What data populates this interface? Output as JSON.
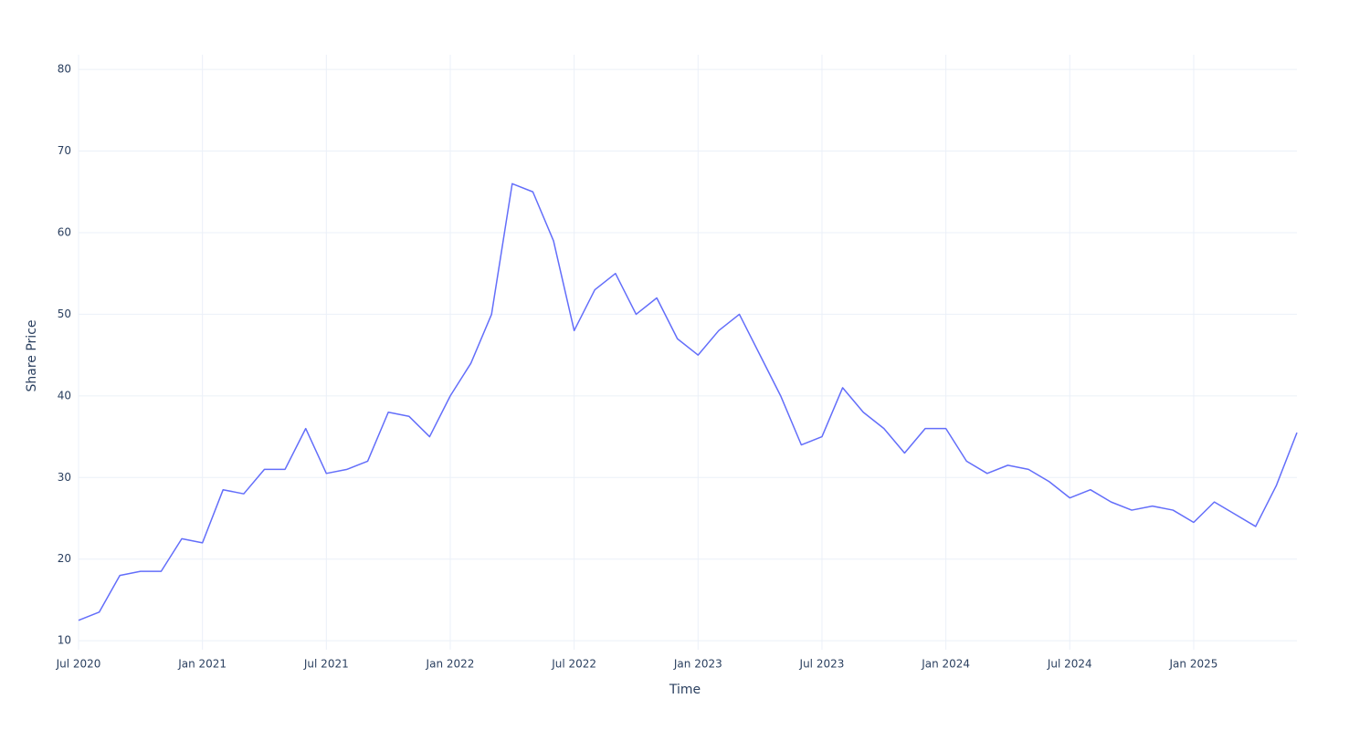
{
  "chart_data": {
    "type": "line",
    "x_label": "Time",
    "y_label": "Share Price",
    "x": [
      "2020-07",
      "2020-08",
      "2020-09",
      "2020-10",
      "2020-11",
      "2020-12",
      "2021-01",
      "2021-02",
      "2021-03",
      "2021-04",
      "2021-05",
      "2021-06",
      "2021-07",
      "2021-08",
      "2021-09",
      "2021-10",
      "2021-11",
      "2021-12",
      "2022-01",
      "2022-02",
      "2022-03",
      "2022-04",
      "2022-05",
      "2022-06",
      "2022-07",
      "2022-08",
      "2022-09",
      "2022-10",
      "2022-11",
      "2022-12",
      "2023-01",
      "2023-02",
      "2023-03",
      "2023-04",
      "2023-05",
      "2023-06",
      "2023-07",
      "2023-08",
      "2023-09",
      "2023-10",
      "2023-11",
      "2023-12",
      "2024-01",
      "2024-02",
      "2024-03",
      "2024-04",
      "2024-05",
      "2024-06",
      "2024-07",
      "2024-08",
      "2024-09",
      "2024-10",
      "2024-11",
      "2024-12",
      "2025-01",
      "2025-02",
      "2025-03",
      "2025-04",
      "2025-05",
      "2025-06"
    ],
    "series": [
      {
        "color": "#636efa",
        "values": [
          12.5,
          13.5,
          18,
          18.5,
          18.5,
          22.5,
          22,
          28.5,
          28,
          31,
          31,
          36,
          30.5,
          31,
          32,
          38,
          37.5,
          35,
          40,
          44,
          50,
          66,
          65,
          59,
          48,
          53,
          55,
          50,
          52,
          47,
          45,
          48,
          50,
          45,
          40,
          34,
          35,
          41,
          38,
          36,
          33,
          36,
          36,
          32,
          30.5,
          31.5,
          31,
          29.5,
          27.5,
          28.5,
          27,
          26,
          26.5,
          26,
          24.5,
          27,
          25.5,
          24,
          29,
          35.5
        ]
      }
    ],
    "xlim": [
      "2020-07",
      "2025-06"
    ],
    "xticks": [
      {
        "value": "2020-07",
        "label": "Jul 2020"
      },
      {
        "value": "2021-01",
        "label": "Jan 2021"
      },
      {
        "value": "2021-07",
        "label": "Jul 2021"
      },
      {
        "value": "2022-01",
        "label": "Jan 2022"
      },
      {
        "value": "2022-07",
        "label": "Jul 2022"
      },
      {
        "value": "2023-01",
        "label": "Jan 2023"
      },
      {
        "value": "2023-07",
        "label": "Jul 2023"
      },
      {
        "value": "2024-01",
        "label": "Jan 2024"
      },
      {
        "value": "2024-07",
        "label": "Jul 2024"
      },
      {
        "value": "2025-01",
        "label": "Jan 2025"
      }
    ],
    "ylim": [
      8.9,
      81.8
    ],
    "yticks": [
      10,
      20,
      30,
      40,
      50,
      60,
      70,
      80
    ],
    "grid": true
  }
}
